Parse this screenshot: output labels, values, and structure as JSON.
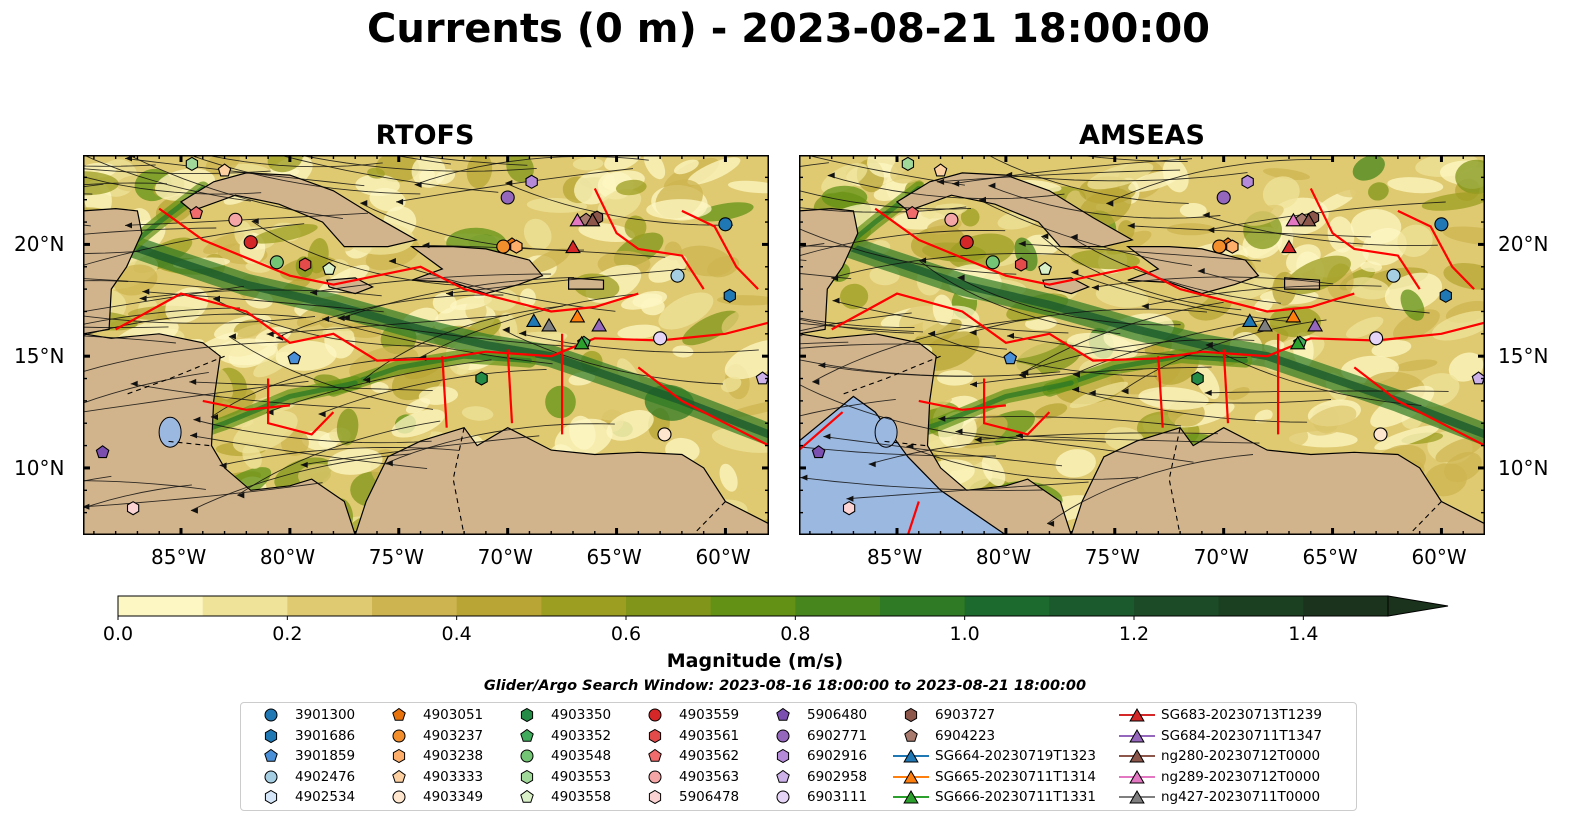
{
  "chart_data": {
    "type": "map",
    "title": "Currents (0 m) - 2023-08-21 18:00:00",
    "panels": [
      {
        "name": "RTOFS"
      },
      {
        "name": "AMSEAS"
      }
    ],
    "lon_range": [
      -89.5,
      -58.0
    ],
    "lat_range": [
      7.0,
      24.0
    ],
    "lon_ticks": [
      "85°W",
      "80°W",
      "75°W",
      "70°W",
      "65°W",
      "60°W"
    ],
    "lat_ticks": [
      "20°N",
      "15°N",
      "10°N"
    ],
    "colorbar": {
      "label": "Magnitude (m/s)",
      "ticks": [
        "0.0",
        "0.2",
        "0.4",
        "0.6",
        "0.8",
        "1.0",
        "1.2",
        "1.4"
      ],
      "min": 0.0,
      "max": 1.5,
      "step": 0.1,
      "colors": [
        "#fdf7c3",
        "#efe39a",
        "#dfca72",
        "#cdb450",
        "#b8a535",
        "#9c9e22",
        "#80951a",
        "#629115",
        "#47861c",
        "#2f7a24",
        "#1c6a2e",
        "#1a5a2c",
        "#1b4b27",
        "#1b3f21",
        "#1b331c"
      ]
    },
    "search_window": "Glider/Argo Search Window: 2023-08-16 18:00:00 to 2023-08-21 18:00:00",
    "legend": [
      {
        "label": "3901300",
        "marker": "circle",
        "color": "#1f77b4"
      },
      {
        "label": "3901686",
        "marker": "hexagon",
        "color": "#1f77b4"
      },
      {
        "label": "3901859",
        "marker": "pentagon",
        "color": "#4a90d9"
      },
      {
        "label": "4902476",
        "marker": "circle",
        "color": "#a6cee3"
      },
      {
        "label": "4902534",
        "marker": "hexagon",
        "color": "#d4e6f7"
      },
      {
        "label": "4903051",
        "marker": "pentagon",
        "color": "#e8720c"
      },
      {
        "label": "4903237",
        "marker": "circle",
        "color": "#f28e2b"
      },
      {
        "label": "4903238",
        "marker": "hexagon",
        "color": "#fdae6b"
      },
      {
        "label": "4903333",
        "marker": "pentagon",
        "color": "#fdd0a2"
      },
      {
        "label": "4903349",
        "marker": "circle",
        "color": "#fee6ce"
      },
      {
        "label": "4903350",
        "marker": "hexagon",
        "color": "#238b45"
      },
      {
        "label": "4903352",
        "marker": "pentagon",
        "color": "#41ab5d"
      },
      {
        "label": "4903548",
        "marker": "circle",
        "color": "#74c476"
      },
      {
        "label": "4903553",
        "marker": "hexagon",
        "color": "#a1d99b"
      },
      {
        "label": "4903558",
        "marker": "pentagon",
        "color": "#d9f0c8"
      },
      {
        "label": "4903559",
        "marker": "circle",
        "color": "#d62728"
      },
      {
        "label": "4903561",
        "marker": "hexagon",
        "color": "#e34a4a"
      },
      {
        "label": "4903562",
        "marker": "pentagon",
        "color": "#f06b6b"
      },
      {
        "label": "4903563",
        "marker": "circle",
        "color": "#f4a6a6"
      },
      {
        "label": "5906478",
        "marker": "hexagon",
        "color": "#fbd3d3"
      },
      {
        "label": "5906480",
        "marker": "pentagon",
        "color": "#7b4fb0"
      },
      {
        "label": "6902771",
        "marker": "circle",
        "color": "#9467bd"
      },
      {
        "label": "6902916",
        "marker": "hexagon",
        "color": "#b58ad9"
      },
      {
        "label": "6902958",
        "marker": "pentagon",
        "color": "#cdb2ea"
      },
      {
        "label": "6903111",
        "marker": "circle",
        "color": "#e5d4f5"
      },
      {
        "label": "6903727",
        "marker": "hexagon",
        "color": "#8c564b"
      },
      {
        "label": "6904223",
        "marker": "pentagon",
        "color": "#a87a6e"
      },
      {
        "label": "SG664-20230719T1323",
        "marker": "triangle",
        "color": "#1f77b4"
      },
      {
        "label": "SG665-20230711T1314",
        "marker": "triangle",
        "color": "#ff7f0e"
      },
      {
        "label": "SG666-20230711T1331",
        "marker": "triangle",
        "color": "#2ca02c"
      },
      {
        "label": "SG683-20230713T1239",
        "marker": "triangle",
        "color": "#d62728"
      },
      {
        "label": "SG684-20230711T1347",
        "marker": "triangle",
        "color": "#9467bd"
      },
      {
        "label": "ng280-20230712T0000",
        "marker": "triangle",
        "color": "#8c564b"
      },
      {
        "label": "ng289-20230712T0000",
        "marker": "triangle",
        "color": "#e377c2"
      },
      {
        "label": "ng427-20230711T0000",
        "marker": "triangle",
        "color": "#7f7f7f"
      }
    ],
    "markers": [
      {
        "label": "3901300",
        "lon": -60.0,
        "lat": 20.9
      },
      {
        "label": "3901686",
        "lon": -59.8,
        "lat": 17.7
      },
      {
        "label": "3901859",
        "lon": -79.8,
        "lat": 14.9
      },
      {
        "label": "4902476",
        "lon": -62.2,
        "lat": 18.6
      },
      {
        "label": "4902534",
        "lon": -63.0,
        "lat": 15.8
      },
      {
        "label": "4903051",
        "lon": -69.8,
        "lat": 20.0
      },
      {
        "label": "4903237",
        "lon": -70.2,
        "lat": 19.9
      },
      {
        "label": "4903238",
        "lon": -69.6,
        "lat": 19.9
      },
      {
        "label": "4903333",
        "lon": -83.0,
        "lat": 23.3
      },
      {
        "label": "4903349",
        "lon": -62.8,
        "lat": 11.5
      },
      {
        "label": "4903350",
        "lon": -71.2,
        "lat": 14.0
      },
      {
        "label": "4903352",
        "lon": -66.5,
        "lat": 15.6
      },
      {
        "label": "4903548",
        "lon": -80.6,
        "lat": 19.2
      },
      {
        "label": "4903553",
        "lon": -84.5,
        "lat": 23.6
      },
      {
        "label": "4903558",
        "lon": -78.2,
        "lat": 18.9
      },
      {
        "label": "4903559",
        "lon": -81.8,
        "lat": 20.1
      },
      {
        "label": "4903561",
        "lon": -79.3,
        "lat": 19.1
      },
      {
        "label": "4903562",
        "lon": -84.3,
        "lat": 21.4
      },
      {
        "label": "4903563",
        "lon": -82.5,
        "lat": 21.1
      },
      {
        "label": "5906478",
        "lon": -87.2,
        "lat": 8.2
      },
      {
        "label": "5906480",
        "lon": -88.6,
        "lat": 10.7
      },
      {
        "label": "6902771",
        "lon": -70.0,
        "lat": 22.1
      },
      {
        "label": "6902916",
        "lon": -68.9,
        "lat": 22.8
      },
      {
        "label": "6902958",
        "lon": -58.3,
        "lat": 14.0
      },
      {
        "label": "6903111",
        "lon": -63.0,
        "lat": 15.8
      },
      {
        "label": "6903727",
        "lon": -65.9,
        "lat": 21.2
      },
      {
        "label": "6904223",
        "lon": -66.4,
        "lat": 21.1
      },
      {
        "label": "SG664-20230719T1323",
        "lon": -68.8,
        "lat": 16.6
      },
      {
        "label": "SG665-20230711T1314",
        "lon": -66.8,
        "lat": 16.8
      },
      {
        "label": "SG666-20230711T1331",
        "lon": -66.6,
        "lat": 15.6
      },
      {
        "label": "SG683-20230713T1239",
        "lon": -67.0,
        "lat": 19.9
      },
      {
        "label": "SG684-20230711T1347",
        "lon": -65.8,
        "lat": 16.4
      },
      {
        "label": "ng280-20230712T0000",
        "lon": -66.1,
        "lat": 21.1
      },
      {
        "label": "ng289-20230712T0000",
        "lon": -66.8,
        "lat": 21.1
      },
      {
        "label": "ng427-20230711T0000",
        "lon": -68.1,
        "lat": 16.4
      }
    ]
  }
}
